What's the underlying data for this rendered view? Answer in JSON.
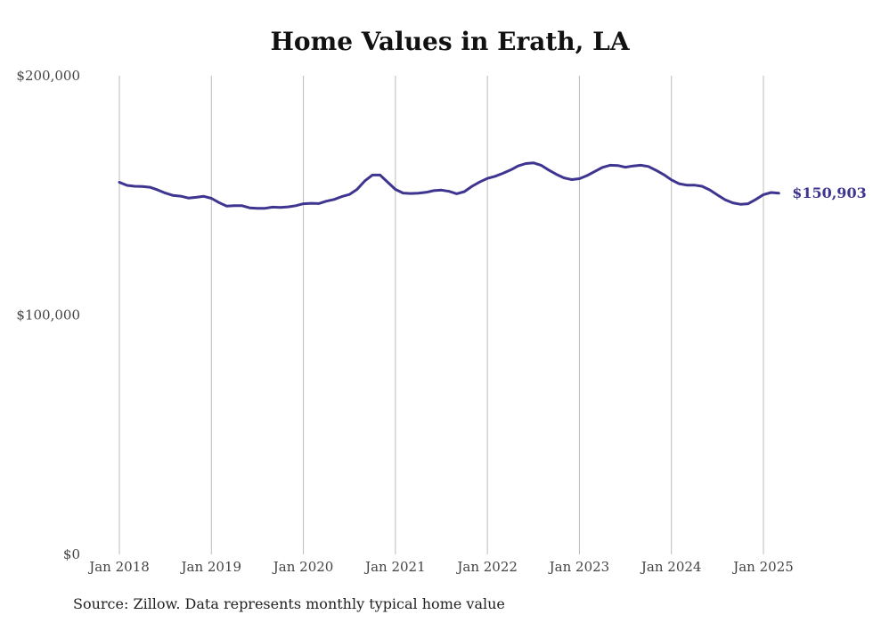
{
  "title": "Home Values in Erath, LA",
  "source": "Source: Zillow. Data represents monthly typical home value",
  "colors": {
    "line": "#3d3590",
    "grid": "#bbbbbb",
    "text": "#444444"
  },
  "chart_data": {
    "type": "line",
    "title": "Home Values in Erath, LA",
    "xlabel": "",
    "ylabel": "",
    "ylim": [
      0,
      200000
    ],
    "xlim": [
      "2018-01",
      "2025-03"
    ],
    "grid": "vertical",
    "yticks": [
      {
        "value": 0,
        "label": "$0"
      },
      {
        "value": 100000,
        "label": "$100,000"
      },
      {
        "value": 200000,
        "label": "$200,000"
      }
    ],
    "xticks": [
      {
        "date": "2018-01",
        "label": "Jan 2018"
      },
      {
        "date": "2019-01",
        "label": "Jan 2019"
      },
      {
        "date": "2020-01",
        "label": "Jan 2020"
      },
      {
        "date": "2021-01",
        "label": "Jan 2021"
      },
      {
        "date": "2022-01",
        "label": "Jan 2022"
      },
      {
        "date": "2023-01",
        "label": "Jan 2023"
      },
      {
        "date": "2024-01",
        "label": "Jan 2024"
      },
      {
        "date": "2025-01",
        "label": "Jan 2025"
      }
    ],
    "end_label": "$150,903",
    "series": [
      {
        "x": [
          "2018-01",
          "2018-02",
          "2018-03",
          "2018-04",
          "2018-05",
          "2018-06",
          "2018-07",
          "2018-08",
          "2018-09",
          "2018-10",
          "2018-11",
          "2018-12",
          "2019-01",
          "2019-02",
          "2019-03",
          "2019-04",
          "2019-05",
          "2019-06",
          "2019-07",
          "2019-08",
          "2019-09",
          "2019-10",
          "2019-11",
          "2019-12",
          "2020-01",
          "2020-02",
          "2020-03",
          "2020-04",
          "2020-05",
          "2020-06",
          "2020-07",
          "2020-08",
          "2020-09",
          "2020-10",
          "2020-11",
          "2020-12",
          "2021-01",
          "2021-02",
          "2021-03",
          "2021-04",
          "2021-05",
          "2021-06",
          "2021-07",
          "2021-08",
          "2021-09",
          "2021-10",
          "2021-11",
          "2021-12",
          "2022-01",
          "2022-02",
          "2022-03",
          "2022-04",
          "2022-05",
          "2022-06",
          "2022-07",
          "2022-08",
          "2022-09",
          "2022-10",
          "2022-11",
          "2022-12",
          "2023-01",
          "2023-02",
          "2023-03",
          "2023-04",
          "2023-05",
          "2023-06",
          "2023-07",
          "2023-08",
          "2023-09",
          "2023-10",
          "2023-11",
          "2023-12",
          "2024-01",
          "2024-02",
          "2024-03",
          "2024-04",
          "2024-05",
          "2024-06",
          "2024-07",
          "2024-08",
          "2024-09",
          "2024-10",
          "2024-11",
          "2024-12",
          "2025-01",
          "2025-02",
          "2025-03"
        ],
        "values": [
          155500,
          154200,
          153800,
          153700,
          153400,
          152300,
          151000,
          150000,
          149700,
          148900,
          149200,
          149600,
          148800,
          147000,
          145500,
          145700,
          145700,
          144800,
          144600,
          144600,
          145100,
          145000,
          145200,
          145700,
          146500,
          146700,
          146600,
          147600,
          148300,
          149500,
          150400,
          152500,
          156000,
          158500,
          158500,
          155500,
          152500,
          151000,
          150800,
          150900,
          151300,
          152000,
          152200,
          151700,
          150700,
          151600,
          153800,
          155600,
          157100,
          158000,
          159200,
          160600,
          162300,
          163300,
          163600,
          162600,
          160600,
          158800,
          157300,
          156600,
          157000,
          158300,
          160000,
          161700,
          162600,
          162500,
          161800,
          162300,
          162600,
          162100,
          160500,
          158700,
          156500,
          154900,
          154300,
          154300,
          153800,
          152300,
          150200,
          148200,
          146900,
          146300,
          146500,
          148300,
          150300,
          151200,
          150903
        ]
      }
    ]
  }
}
